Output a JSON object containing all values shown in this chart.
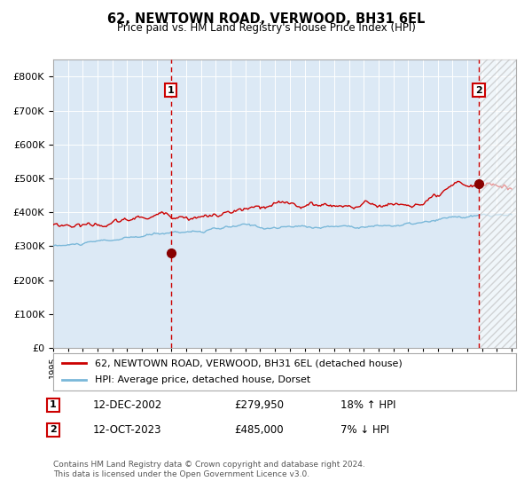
{
  "title": "62, NEWTOWN ROAD, VERWOOD, BH31 6EL",
  "subtitle": "Price paid vs. HM Land Registry's House Price Index (HPI)",
  "background_color": "#dce9f5",
  "plot_bg_color": "#dce9f5",
  "red_line_color": "#cc0000",
  "blue_line_color": "#7ab8d9",
  "grid_color": "#ffffff",
  "ylim": [
    0,
    850000
  ],
  "yticks": [
    0,
    100000,
    200000,
    300000,
    400000,
    500000,
    600000,
    700000,
    800000
  ],
  "ytick_labels": [
    "£0",
    "£100K",
    "£200K",
    "£300K",
    "£400K",
    "£500K",
    "£600K",
    "£700K",
    "£800K"
  ],
  "xstart_year": 1995,
  "xend_year": 2026,
  "sale1_date": 2002.95,
  "sale1_price": 279950,
  "sale1_label": "1",
  "sale2_date": 2023.79,
  "sale2_price": 485000,
  "sale2_label": "2",
  "legend_red": "62, NEWTOWN ROAD, VERWOOD, BH31 6EL (detached house)",
  "legend_blue": "HPI: Average price, detached house, Dorset",
  "note1_date": "12-DEC-2002",
  "note1_price": "£279,950",
  "note1_hpi": "18% ↑ HPI",
  "note2_date": "12-OCT-2023",
  "note2_price": "£485,000",
  "note2_hpi": "7% ↓ HPI",
  "copyright": "Contains HM Land Registry data © Crown copyright and database right 2024.\nThis data is licensed under the Open Government Licence v3.0."
}
